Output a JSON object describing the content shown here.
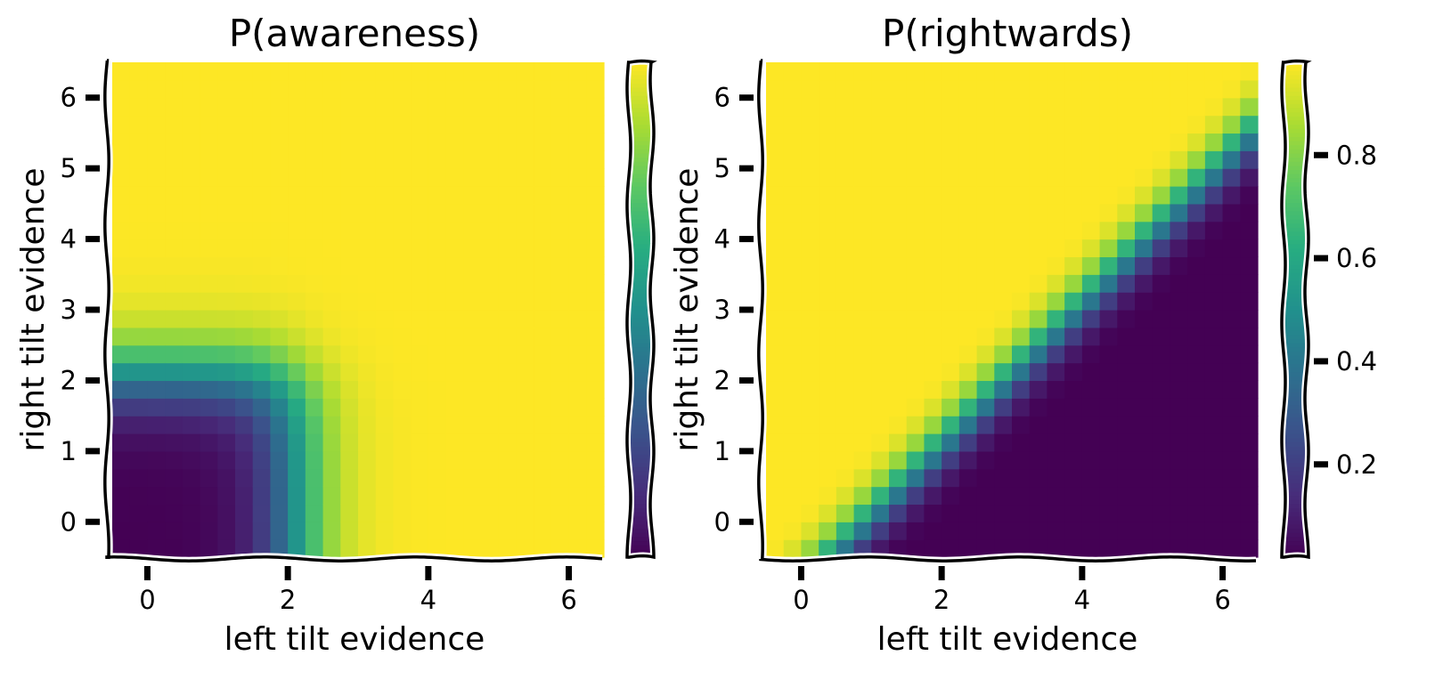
{
  "chart_data": [
    {
      "type": "heatmap",
      "title": "P(awareness)",
      "xlabel": "left tilt evidence",
      "ylabel": "right tilt evidence",
      "x_range": [
        -0.5,
        6.5
      ],
      "y_range": [
        -0.5,
        6.5
      ],
      "x_ticks": [
        "0",
        "2",
        "4",
        "6"
      ],
      "y_ticks": [
        "0",
        "1",
        "2",
        "3",
        "4",
        "5",
        "6"
      ],
      "grid_cells": 28,
      "colormap": "viridis",
      "colorbar": {
        "range": [
          0,
          1
        ],
        "ticks": []
      },
      "model": {
        "kind": "awareness",
        "threshold": 2.1,
        "slope": 3.2
      },
      "grid": false
    },
    {
      "type": "heatmap",
      "title": "P(rightwards)",
      "xlabel": "left tilt evidence",
      "ylabel": "right tilt evidence",
      "x_range": [
        -0.5,
        6.5
      ],
      "y_range": [
        -0.5,
        6.5
      ],
      "x_ticks": [
        "0",
        "2",
        "4",
        "6"
      ],
      "y_ticks": [
        "0",
        "1",
        "2",
        "3",
        "4",
        "5",
        "6"
      ],
      "grid_cells": 28,
      "colormap": "viridis",
      "colorbar": {
        "range": [
          0.02,
          0.98
        ],
        "ticks": [
          "0.2",
          "0.4",
          "0.6",
          "0.8"
        ]
      },
      "model": {
        "kind": "rightwards",
        "offset": 0.9,
        "slope": 4.0
      },
      "grid": false
    }
  ]
}
